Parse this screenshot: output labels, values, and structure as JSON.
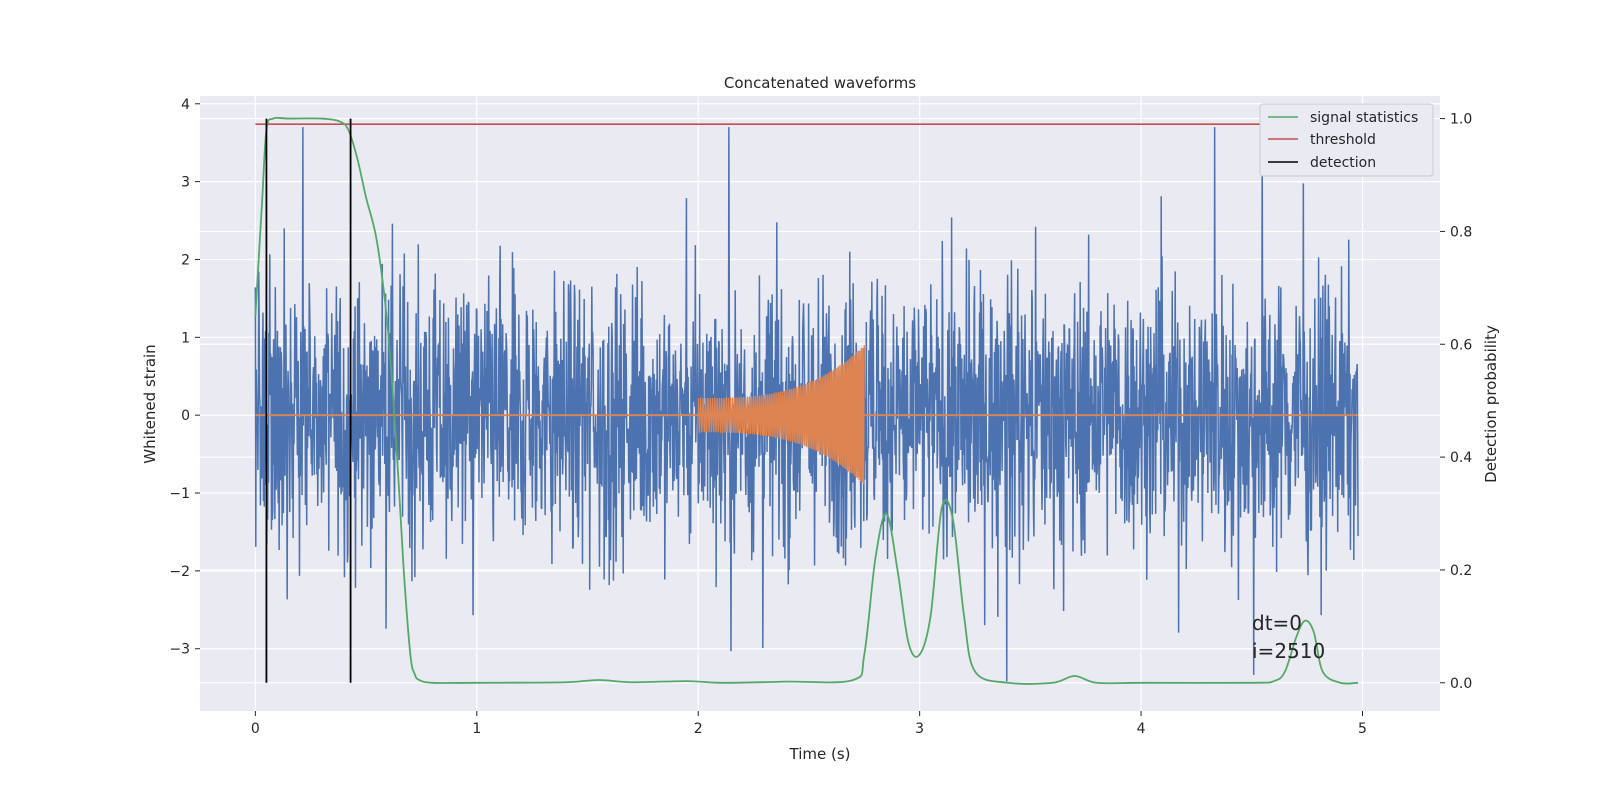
{
  "chart_data": {
    "type": "line",
    "title": "Concatenated waveforms",
    "xlabel": "Time (s)",
    "ylabel_left": "Whitened strain",
    "ylabel_right": "Detection probability",
    "xlim": [
      -0.25,
      5.35
    ],
    "ylim_left": [
      -3.8,
      4.1
    ],
    "ylim_right": [
      -0.05,
      1.04
    ],
    "grid": true,
    "legend_position": "top-right",
    "x_ticks": [
      0,
      1,
      2,
      3,
      4,
      5
    ],
    "y_ticks_left": [
      -3,
      -2,
      -1,
      0,
      1,
      2,
      3,
      4
    ],
    "y_ticks_right": [
      0.0,
      0.2,
      0.4,
      0.6,
      0.8,
      1.0
    ],
    "x_tick_labels": [
      "0",
      "1",
      "2",
      "3",
      "4",
      "5"
    ],
    "y_tick_labels_left": [
      "−3",
      "−2",
      "−1",
      "0",
      "1",
      "2",
      "3",
      "4"
    ],
    "y_tick_labels_right": [
      "0.0",
      "0.2",
      "0.4",
      "0.6",
      "0.8",
      "1.0"
    ],
    "series": [
      {
        "name": "whitened strain noise",
        "axis": "left",
        "color": "#4c72b0",
        "kind": "noise",
        "x_range": [
          0,
          4.98
        ],
        "amplitude_range": [
          -3.5,
          3.7
        ]
      },
      {
        "name": "injected waveform",
        "axis": "left",
        "color": "#dd8452",
        "kind": "chirp",
        "x_range": [
          2.0,
          2.75
        ],
        "start_amplitude": 0.22,
        "peak_amplitude": 0.9,
        "baseline": 0
      },
      {
        "name": "signal statistics",
        "axis": "right",
        "color": "#55a868",
        "x": [
          0.0,
          0.03,
          0.05,
          0.08,
          0.15,
          0.3,
          0.38,
          0.42,
          0.46,
          0.5,
          0.55,
          0.6,
          0.64,
          0.67,
          0.7,
          0.72,
          0.74,
          0.8,
          1.0,
          1.4,
          1.55,
          1.7,
          1.95,
          2.1,
          2.4,
          2.7,
          2.75,
          2.8,
          2.85,
          2.9,
          2.95,
          3.0,
          3.05,
          3.1,
          3.15,
          3.2,
          3.25,
          3.4,
          3.6,
          3.7,
          3.8,
          4.0,
          4.5,
          4.6,
          4.65,
          4.7,
          4.74,
          4.78,
          4.82,
          4.9,
          4.98
        ],
        "y": [
          0.65,
          0.85,
          0.98,
          1.0,
          1.0,
          1.0,
          0.995,
          0.98,
          0.93,
          0.86,
          0.78,
          0.62,
          0.4,
          0.2,
          0.05,
          0.015,
          0.005,
          0.0,
          0.0,
          0.001,
          0.005,
          0.001,
          0.003,
          0.0,
          0.002,
          0.005,
          0.05,
          0.22,
          0.3,
          0.2,
          0.07,
          0.05,
          0.12,
          0.31,
          0.29,
          0.12,
          0.02,
          0.0,
          0.0,
          0.012,
          0.0,
          0.0,
          0.0,
          0.003,
          0.02,
          0.08,
          0.11,
          0.09,
          0.02,
          0.0,
          0.0
        ]
      },
      {
        "name": "threshold",
        "axis": "right",
        "color": "#c44e52",
        "x": [
          0,
          4.98
        ],
        "y": [
          0.99,
          0.99
        ]
      },
      {
        "name": "detection",
        "axis": "right",
        "color": "#000000",
        "kind": "vertical-lines",
        "x": [
          0.05,
          0.43
        ],
        "y_range": [
          0.0,
          1.0
        ]
      }
    ],
    "legend": [
      {
        "label": "signal statistics",
        "color": "#55a868"
      },
      {
        "label": "threshold",
        "color": "#c44e52"
      },
      {
        "label": "detection",
        "color": "#000000"
      }
    ],
    "annotation": {
      "line1": "dt=0",
      "line2": "i=2510",
      "x": 4.5,
      "y_right": 0.1
    }
  }
}
